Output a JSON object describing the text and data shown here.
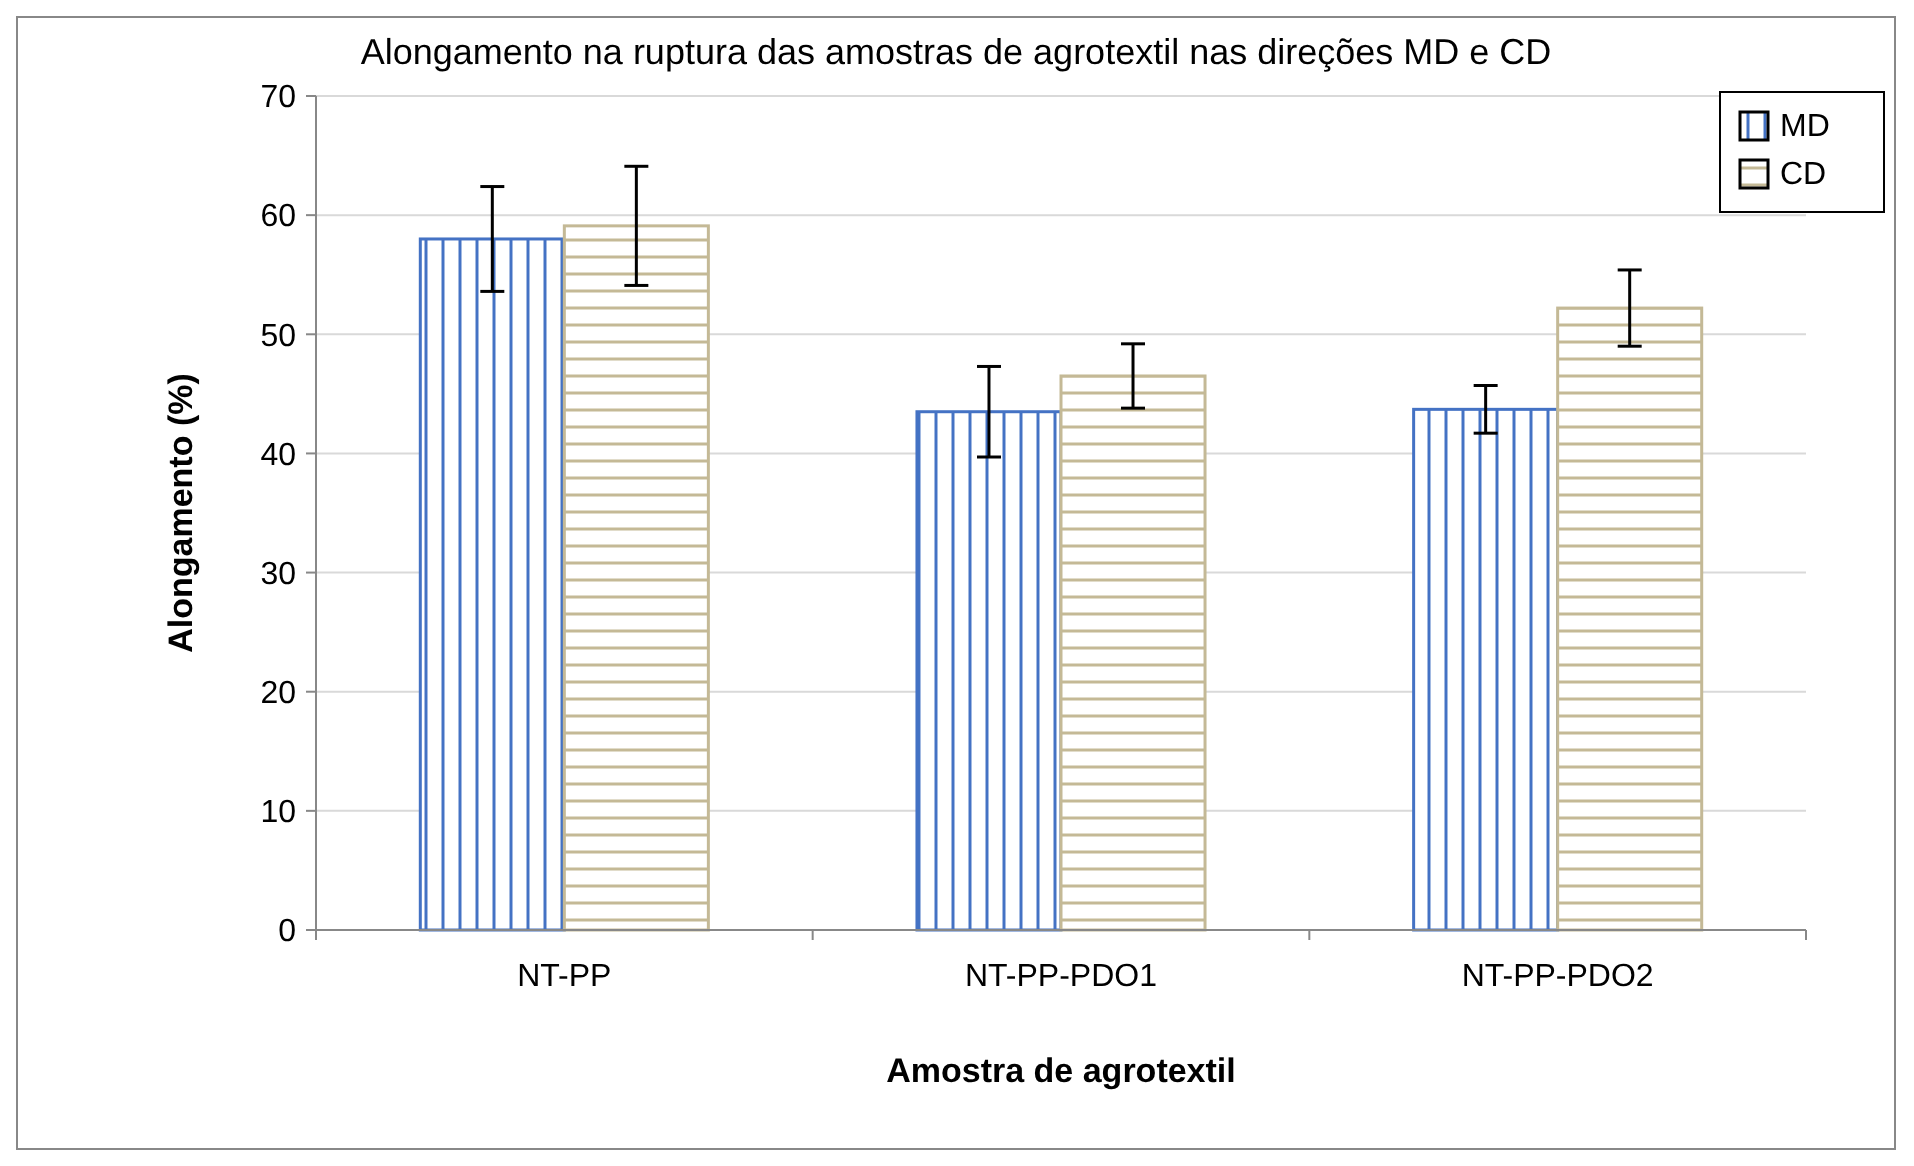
{
  "chart_data": {
    "type": "bar",
    "title": "Alongamento na ruptura das amostras de agrotextil nas direções MD e CD",
    "xlabel": "Amostra de agrotextil",
    "ylabel": "Alongamento (%)",
    "categories": [
      "NT-PP",
      "NT-PP-PDO1",
      "NT-PP-PDO2"
    ],
    "series": [
      {
        "name": "MD",
        "color": "#4472c4",
        "values": [
          58,
          43.5,
          43.7
        ],
        "errors": [
          4.4,
          3.8,
          2
        ]
      },
      {
        "name": "CD",
        "color": "#c4b996",
        "values": [
          59.1,
          46.5,
          52.2
        ],
        "errors": [
          5,
          2.7,
          3.2
        ]
      }
    ],
    "ylim": [
      0,
      70
    ],
    "yticks": [
      0,
      10,
      20,
      30,
      40,
      50,
      60,
      70
    ],
    "grid": "y",
    "legend": "top right"
  }
}
